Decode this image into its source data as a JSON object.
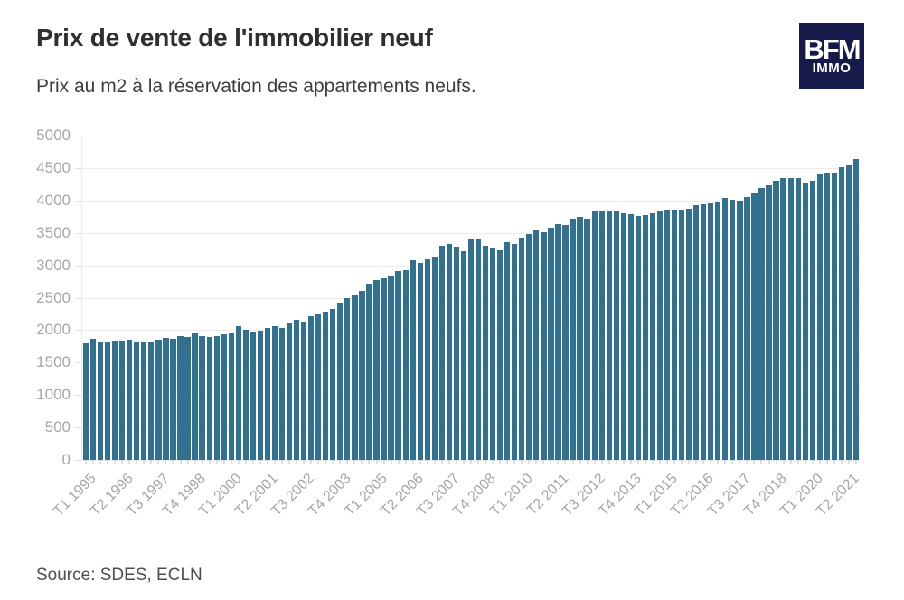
{
  "header": {
    "title": "Prix de vente de l'immobilier neuf",
    "subtitle": "Prix au m2 à la réservation des appartements neufs.",
    "logo": {
      "line1": "BFM",
      "line2": "IMMO"
    }
  },
  "footer": {
    "source": "Source: SDES, ECLN"
  },
  "colors": {
    "bar": "#31708f",
    "logo_background": "#151a4b",
    "grid": "#ececec",
    "axis_label": "#a6a6a6",
    "title_text": "#2f2f2f",
    "source_text": "#4e4e4e"
  },
  "chart_data": {
    "type": "bar",
    "title": "Prix de vente de l'immobilier neuf",
    "subtitle": "Prix au m2 à la réservation des appartements neufs.",
    "xlabel": "",
    "ylabel": "",
    "ylim": [
      0,
      5000
    ],
    "yticks": [
      0,
      500,
      1000,
      1500,
      2000,
      2500,
      3000,
      3500,
      4000,
      4500,
      5000
    ],
    "grid": true,
    "legend": "none",
    "x_tick_every": 5,
    "visible_x_tick_labels": [
      "T1 1995",
      "T2 1996",
      "T3 1997",
      "T4 1998",
      "T1 2000",
      "T2 2001",
      "T3 2002",
      "T4 2003",
      "T1 2005",
      "T2 2006",
      "T3 2007",
      "T4 2008",
      "T1 2010",
      "T2 2011",
      "T3 2012",
      "T4 2013",
      "T1 2015",
      "T2 2016",
      "T3 2017",
      "T4 2018",
      "T1 2020",
      "T2 2021"
    ],
    "x": [
      "T1 1995",
      "T2 1995",
      "T3 1995",
      "T4 1995",
      "T1 1996",
      "T2 1996",
      "T3 1996",
      "T4 1996",
      "T1 1997",
      "T2 1997",
      "T3 1997",
      "T4 1997",
      "T1 1998",
      "T2 1998",
      "T3 1998",
      "T4 1998",
      "T1 1999",
      "T2 1999",
      "T3 1999",
      "T4 1999",
      "T1 2000",
      "T2 2000",
      "T3 2000",
      "T4 2000",
      "T1 2001",
      "T2 2001",
      "T3 2001",
      "T4 2001",
      "T1 2002",
      "T2 2002",
      "T3 2002",
      "T4 2002",
      "T1 2003",
      "T2 2003",
      "T3 2003",
      "T4 2003",
      "T1 2004",
      "T2 2004",
      "T3 2004",
      "T4 2004",
      "T1 2005",
      "T2 2005",
      "T3 2005",
      "T4 2005",
      "T1 2006",
      "T2 2006",
      "T3 2006",
      "T4 2006",
      "T1 2007",
      "T2 2007",
      "T3 2007",
      "T4 2007",
      "T1 2008",
      "T2 2008",
      "T3 2008",
      "T4 2008",
      "T1 2009",
      "T2 2009",
      "T3 2009",
      "T4 2009",
      "T1 2010",
      "T2 2010",
      "T3 2010",
      "T4 2010",
      "T1 2011",
      "T2 2011",
      "T3 2011",
      "T4 2011",
      "T1 2012",
      "T2 2012",
      "T3 2012",
      "T4 2012",
      "T1 2013",
      "T2 2013",
      "T3 2013",
      "T4 2013",
      "T1 2014",
      "T2 2014",
      "T3 2014",
      "T4 2014",
      "T1 2015",
      "T2 2015",
      "T3 2015",
      "T4 2015",
      "T1 2016",
      "T2 2016",
      "T3 2016",
      "T4 2016",
      "T1 2017",
      "T2 2017",
      "T3 2017",
      "T4 2017",
      "T1 2018",
      "T2 2018",
      "T3 2018",
      "T4 2018",
      "T1 2019",
      "T2 2019",
      "T3 2019",
      "T4 2019",
      "T1 2020",
      "T2 2020",
      "T3 2020",
      "T4 2020",
      "T1 2021",
      "T2 2021",
      "T3 2021"
    ],
    "values": [
      1790,
      1865,
      1830,
      1810,
      1835,
      1835,
      1850,
      1830,
      1815,
      1820,
      1855,
      1880,
      1865,
      1915,
      1890,
      1945,
      1915,
      1900,
      1915,
      1935,
      1945,
      2065,
      2005,
      1975,
      1990,
      2030,
      2065,
      2040,
      2100,
      2160,
      2130,
      2215,
      2240,
      2290,
      2330,
      2420,
      2495,
      2540,
      2610,
      2710,
      2770,
      2805,
      2840,
      2910,
      2925,
      3075,
      3040,
      3095,
      3130,
      3295,
      3330,
      3290,
      3215,
      3400,
      3410,
      3305,
      3260,
      3235,
      3355,
      3330,
      3430,
      3480,
      3540,
      3505,
      3585,
      3630,
      3615,
      3725,
      3745,
      3720,
      3830,
      3845,
      3845,
      3825,
      3805,
      3795,
      3760,
      3780,
      3805,
      3840,
      3865,
      3865,
      3855,
      3870,
      3930,
      3945,
      3955,
      3975,
      4040,
      4005,
      4000,
      4050,
      4105,
      4190,
      4235,
      4305,
      4340,
      4350,
      4340,
      4280,
      4310,
      4395,
      4410,
      4430,
      4510,
      4545,
      4645
    ]
  }
}
